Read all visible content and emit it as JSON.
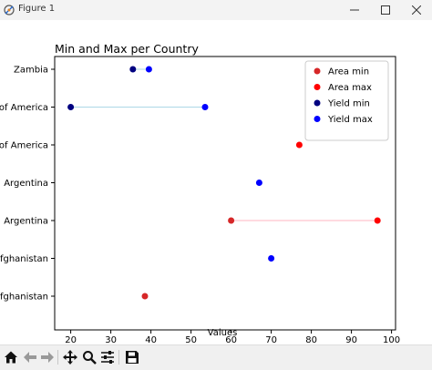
{
  "window": {
    "title": "Figure 1",
    "icons": [
      "app-icon",
      "minimize-icon",
      "maximize-icon",
      "close-icon"
    ]
  },
  "toolbar": {
    "icons": [
      "home-icon",
      "back-icon",
      "forward-icon",
      "pan-icon",
      "zoom-icon",
      "configure-icon",
      "save-icon"
    ]
  },
  "chart_data": {
    "type": "scatter",
    "title": "Min and Max per Country",
    "xlabel": "Values",
    "ylabel": "",
    "xlim": [
      16,
      101
    ],
    "xticks": [
      20,
      30,
      40,
      50,
      60,
      70,
      80,
      90,
      100
    ],
    "categories": [
      "Zambia",
      "of America",
      "of America",
      "Argentina",
      "Argentina",
      "fghanistan",
      "fghanistan"
    ],
    "series": [
      {
        "name": "Area min",
        "color": "#d62728",
        "points": [
          {
            "row": 4,
            "x": 60
          },
          {
            "row": 6,
            "x": 38.5
          }
        ]
      },
      {
        "name": "Area max",
        "color": "#ff0000",
        "points": [
          {
            "row": 2,
            "x": 77
          },
          {
            "row": 4,
            "x": 96.5
          }
        ]
      },
      {
        "name": "Yield min",
        "color": "#000080",
        "points": [
          {
            "row": 0,
            "x": 35.5
          },
          {
            "row": 1,
            "x": 20
          }
        ]
      },
      {
        "name": "Yield max",
        "color": "#0000ff",
        "points": [
          {
            "row": 0,
            "x": 39.5
          },
          {
            "row": 1,
            "x": 53.5
          },
          {
            "row": 3,
            "x": 67
          },
          {
            "row": 5,
            "x": 70
          }
        ]
      }
    ],
    "ranges": [
      {
        "row": 0,
        "from": 35.5,
        "to": 39.5,
        "color": "#add8e6"
      },
      {
        "row": 1,
        "from": 20,
        "to": 53.5,
        "color": "#add8e6"
      },
      {
        "row": 4,
        "from": 60,
        "to": 96.5,
        "color": "#ffb6c1"
      }
    ],
    "legend": "top-right",
    "grid": false
  }
}
